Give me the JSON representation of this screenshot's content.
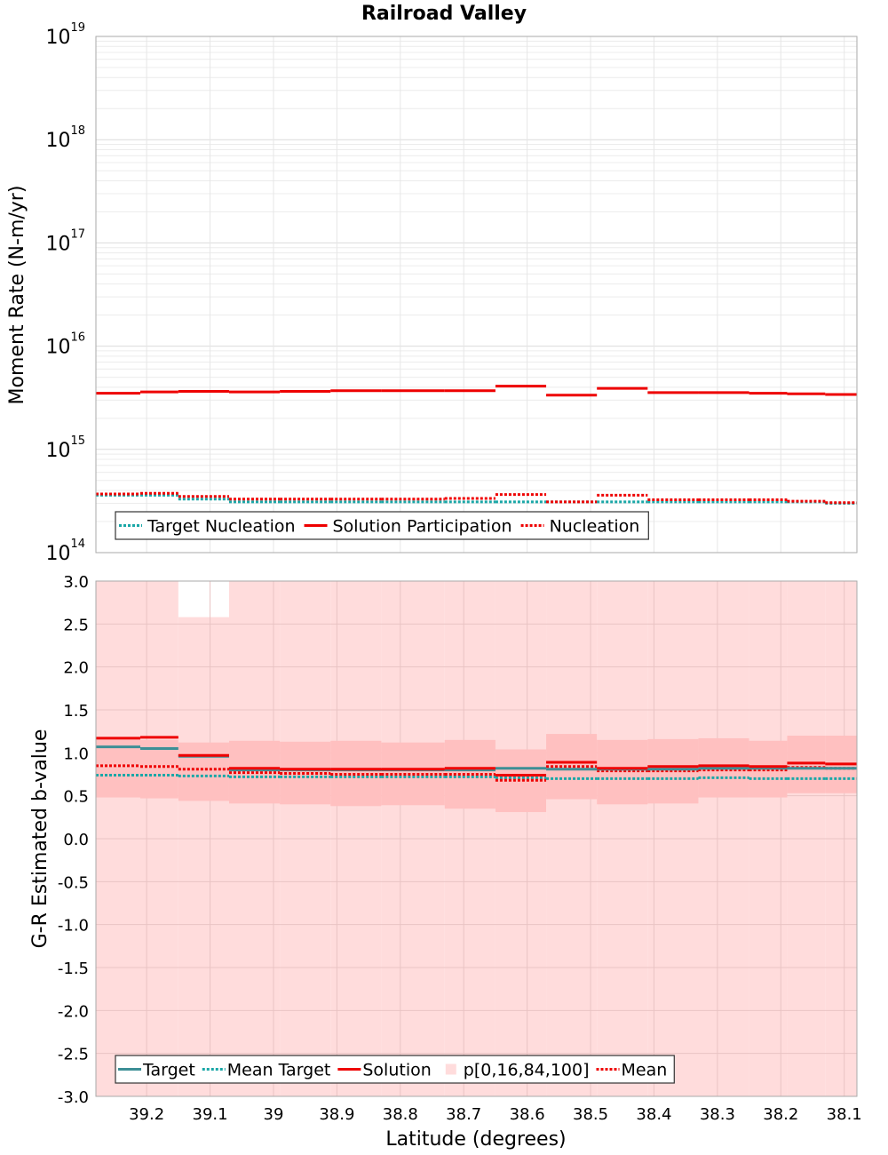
{
  "chart_data": [
    {
      "type": "line",
      "title": "Railroad Valley",
      "ylabel": "Moment Rate (N-m/yr)",
      "yscale": "log",
      "ylim": [
        100000000000000.0,
        1e+19
      ],
      "xlim": [
        39.28,
        38.08
      ],
      "grid": true,
      "legend_placement": "bottom-left",
      "ytick_labels": [
        {
          "v": 100000000000000.0,
          "base": "10",
          "exp": "14"
        },
        {
          "v": 1000000000000000.0,
          "base": "10",
          "exp": "15"
        },
        {
          "v": 1e+16,
          "base": "10",
          "exp": "16"
        },
        {
          "v": 1e+17,
          "base": "10",
          "exp": "17"
        },
        {
          "v": 1e+18,
          "base": "10",
          "exp": "18"
        },
        {
          "v": 1e+19,
          "base": "10",
          "exp": "19"
        }
      ],
      "bin_edges": [
        39.28,
        39.21,
        39.15,
        39.07,
        38.99,
        38.91,
        38.83,
        38.73,
        38.65,
        38.57,
        38.49,
        38.41,
        38.33,
        38.25,
        38.19,
        38.13,
        38.08
      ],
      "series": [
        {
          "name": "Target Nucleation",
          "color": "#1aa7a7",
          "style": "dotted",
          "values": [
            360000000000000.0,
            360000000000000.0,
            330000000000000.0,
            310000000000000.0,
            310000000000000.0,
            310000000000000.0,
            310000000000000.0,
            310000000000000.0,
            310000000000000.0,
            310000000000000.0,
            310000000000000.0,
            310000000000000.0,
            310000000000000.0,
            310000000000000.0,
            310000000000000.0,
            300000000000000.0
          ]
        },
        {
          "name": "Solution Participation",
          "color": "#ee0000",
          "style": "solid",
          "values": [
            3500000000000000.0,
            3600000000000000.0,
            3650000000000000.0,
            3600000000000000.0,
            3650000000000000.0,
            3700000000000000.0,
            3700000000000000.0,
            3700000000000000.0,
            4100000000000000.0,
            3350000000000000.0,
            3900000000000000.0,
            3550000000000000.0,
            3550000000000000.0,
            3500000000000000.0,
            3450000000000000.0,
            3400000000000000.0
          ]
        },
        {
          "name": "Nucleation",
          "color": "#ee0000",
          "style": "dotted",
          "values": [
            370000000000000.0,
            375000000000000.0,
            350000000000000.0,
            330000000000000.0,
            330000000000000.0,
            330000000000000.0,
            330000000000000.0,
            335000000000000.0,
            365000000000000.0,
            310000000000000.0,
            360000000000000.0,
            325000000000000.0,
            325000000000000.0,
            325000000000000.0,
            315000000000000.0,
            305000000000000.0
          ]
        }
      ],
      "legend": [
        "Target Nucleation",
        "Solution Participation",
        "Nucleation"
      ]
    },
    {
      "type": "line",
      "xlabel": "Latitude (degrees)",
      "ylabel": "G-R Estimated b-value",
      "ylim": [
        -3.0,
        3.0
      ],
      "xlim": [
        39.28,
        38.08
      ],
      "grid": true,
      "legend_placement": "bottom-left",
      "yticks": [
        "3.0",
        "2.5",
        "2.0",
        "1.5",
        "1.0",
        "0.5",
        "0.0",
        "-0.5",
        "-1.0",
        "-1.5",
        "-2.0",
        "-2.5",
        "-3.0"
      ],
      "xticks": [
        "39.2",
        "39.1",
        "39",
        "38.9",
        "38.8",
        "38.7",
        "38.6",
        "38.5",
        "38.4",
        "38.3",
        "38.2",
        "38.1"
      ],
      "bin_edges": [
        39.28,
        39.21,
        39.15,
        39.07,
        38.99,
        38.91,
        38.83,
        38.73,
        38.65,
        38.57,
        38.49,
        38.41,
        38.33,
        38.25,
        38.19,
        38.13,
        38.08
      ],
      "band_outer": {
        "name": "p[0,16,84,100]",
        "color": "#ffdcdc",
        "low": [
          -3.0,
          -3.0,
          -3.0,
          -3.0,
          -3.0,
          -3.0,
          -3.0,
          -3.0,
          -3.0,
          -3.0,
          -3.0,
          -3.0,
          -3.0,
          -3.0,
          -3.0,
          -3.0
        ],
        "high": [
          3.0,
          3.0,
          2.58,
          3.0,
          3.0,
          3.0,
          3.0,
          3.0,
          3.0,
          3.0,
          3.0,
          3.0,
          3.0,
          3.0,
          3.0,
          3.0
        ]
      },
      "band_inner": {
        "color": "#ffc0c0",
        "low": [
          0.48,
          0.47,
          0.44,
          0.41,
          0.4,
          0.38,
          0.39,
          0.35,
          0.31,
          0.46,
          0.4,
          0.41,
          0.48,
          0.48,
          0.53,
          0.53
        ],
        "high": [
          1.15,
          1.15,
          1.12,
          1.14,
          1.13,
          1.14,
          1.12,
          1.15,
          1.04,
          1.22,
          1.15,
          1.16,
          1.17,
          1.14,
          1.2,
          1.2
        ]
      },
      "series": [
        {
          "name": "Target",
          "color": "#1aa7a7",
          "style": "solid",
          "values": [
            1.07,
            1.05,
            0.96,
            0.8,
            0.8,
            0.8,
            0.8,
            0.8,
            0.82,
            0.81,
            0.81,
            0.81,
            0.82,
            0.82,
            0.82,
            0.82
          ]
        },
        {
          "name": "Mean Target",
          "color": "#1aa7a7",
          "style": "dotted",
          "values": [
            0.74,
            0.74,
            0.73,
            0.72,
            0.72,
            0.72,
            0.72,
            0.72,
            0.71,
            0.7,
            0.7,
            0.7,
            0.71,
            0.7,
            0.7,
            0.7
          ]
        },
        {
          "name": "Solution",
          "color": "#ee0000",
          "style": "solid",
          "values": [
            1.17,
            1.18,
            0.97,
            0.82,
            0.81,
            0.81,
            0.81,
            0.82,
            0.74,
            0.89,
            0.82,
            0.84,
            0.85,
            0.84,
            0.88,
            0.87
          ]
        },
        {
          "name": "Mean",
          "color": "#ee0000",
          "style": "dotted",
          "values": [
            0.85,
            0.84,
            0.81,
            0.77,
            0.76,
            0.75,
            0.75,
            0.75,
            0.68,
            0.84,
            0.79,
            0.79,
            0.8,
            0.8,
            0.83,
            0.82
          ]
        }
      ],
      "legend": [
        "Target",
        "Mean Target",
        "Solution",
        "p[0,16,84,100]",
        "Mean"
      ]
    }
  ]
}
